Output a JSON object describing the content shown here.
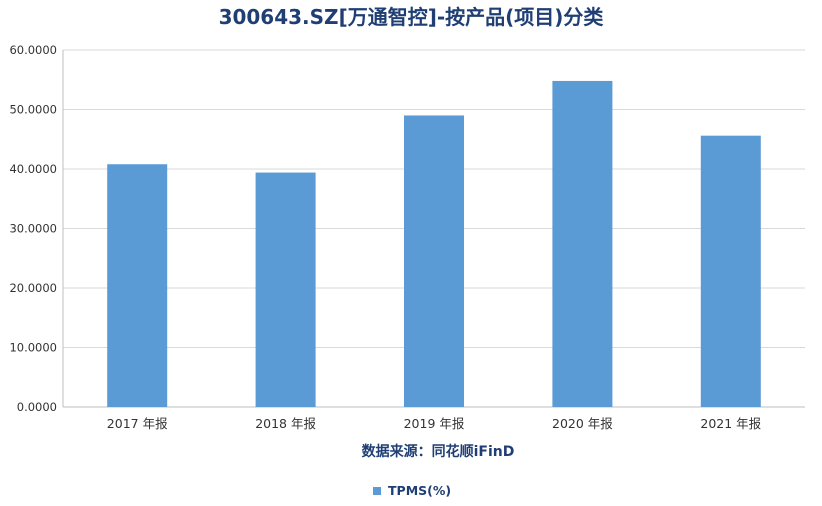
{
  "chart_data": {
    "type": "bar",
    "title": "300643.SZ[万通智控]-按产品(项目)分类",
    "categories": [
      "2017 年报",
      "2018 年报",
      "2019 年报",
      "2020 年报",
      "2021 年报"
    ],
    "series": [
      {
        "name": "TPMS(%)",
        "values": [
          40.8,
          39.4,
          49.0,
          54.8,
          45.6
        ]
      }
    ],
    "ylim": [
      0,
      60
    ],
    "yticks": [
      0,
      10,
      20,
      30,
      40,
      50,
      60
    ],
    "ytick_labels": [
      "0.0000",
      "10.0000",
      "20.0000",
      "30.0000",
      "40.0000",
      "50.0000",
      "60.0000"
    ],
    "grid": true,
    "legend": "bottom-center",
    "source_note": "数据来源：同花顺iFinD",
    "colors": {
      "bar": "#5b9bd5",
      "grid": "#d9d9d9",
      "axis": "#bfbfbf",
      "title": "#1f3f74"
    }
  }
}
